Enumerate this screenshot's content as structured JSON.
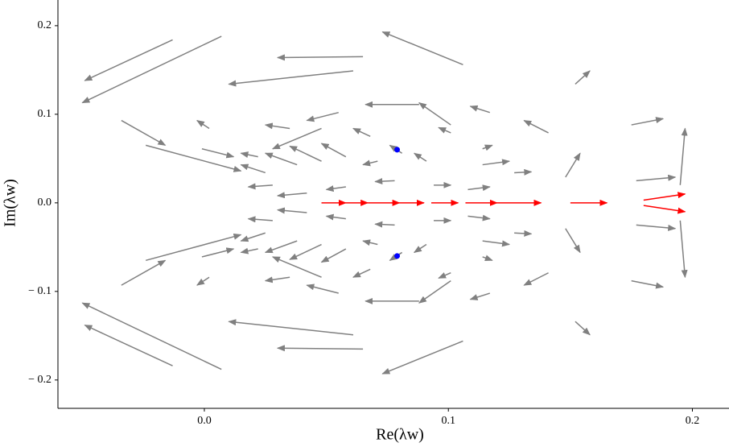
{
  "chart_data": {
    "type": "quiver",
    "xlabel": "Re(λw)",
    "ylabel": "Im(λw)",
    "xlim": [
      -0.06,
      0.215
    ],
    "ylim": [
      -0.232,
      0.229
    ],
    "xticks": [
      {
        "value": 0,
        "label": "0.0"
      },
      0.1,
      0.2
    ],
    "yticks": [
      {
        "value": -0.2,
        "label": "− 0.2"
      },
      {
        "value": -0.1,
        "label": "− 0.1"
      },
      {
        "value": 0,
        "label": "0.0"
      },
      0.1,
      0.2
    ],
    "series": [
      {
        "color": "#808080",
        "segments": [
          [
            0.106,
            0.156,
            0.073,
            0.193
          ],
          [
            0.065,
            0.165,
            0.03,
            0.164
          ],
          [
            0.061,
            0.149,
            0.01,
            0.134
          ],
          [
            0.088,
            0.111,
            0.066,
            0.111
          ],
          [
            0.101,
            0.088,
            0.088,
            0.113
          ],
          [
            0.117,
            0.102,
            0.109,
            0.109
          ],
          [
            0.141,
            0.079,
            0.131,
            0.093
          ],
          [
            0.148,
            0.029,
            0.154,
            0.056
          ],
          [
            0.152,
            0.134,
            0.158,
            0.149
          ],
          [
            0.175,
            0.088,
            0.188,
            0.095
          ],
          [
            0.195,
            0.02,
            0.197,
            0.084
          ],
          [
            0.177,
            0.025,
            0.193,
            0.029
          ],
          [
            0.055,
            0.102,
            0.042,
            0.093
          ],
          [
            0.048,
            0.084,
            0.028,
            0.061
          ],
          [
            0.002,
            0.084,
            -0.003,
            0.093
          ],
          [
            -0.013,
            0.184,
            -0.049,
            0.138
          ],
          [
            0.007,
            0.188,
            -0.05,
            0.113
          ],
          [
            -0.034,
            0.093,
            -0.016,
            0.065
          ],
          [
            -0.024,
            0.065,
            0.015,
            0.036
          ],
          [
            -0.001,
            0.061,
            0.012,
            0.052
          ],
          [
            0.025,
            0.034,
            0.015,
            0.043
          ],
          [
            0.038,
            0.043,
            0.025,
            0.056
          ],
          [
            0.048,
            0.047,
            0.035,
            0.064
          ],
          [
            0.058,
            0.052,
            0.048,
            0.067
          ],
          [
            0.071,
            0.047,
            0.065,
            0.043
          ],
          [
            0.081,
            0.056,
            0.076,
            0.065
          ],
          [
            0.091,
            0.047,
            0.086,
            0.056
          ],
          [
            0.094,
            0.02,
            0.101,
            0.02
          ],
          [
            0.108,
            0.015,
            0.117,
            0.018
          ],
          [
            0.114,
            0.043,
            0.125,
            0.047
          ],
          [
            0.127,
            0.034,
            0.134,
            0.035
          ],
          [
            0.078,
            0.025,
            0.07,
            0.024
          ],
          [
            0.058,
            0.018,
            0.05,
            0.015
          ],
          [
            0.042,
            0.011,
            0.03,
            0.008
          ],
          [
            0.028,
            0.02,
            0.018,
            0.018
          ],
          [
            0.101,
            0.079,
            0.096,
            0.085
          ],
          [
            0.114,
            0.061,
            0.118,
            0.065
          ],
          [
            0.068,
            0.075,
            0.061,
            0.084
          ],
          [
            0.035,
            0.084,
            0.025,
            0.088
          ],
          [
            0.022,
            0.052,
            0.015,
            0.056
          ],
          [
            0.106,
            -0.156,
            0.073,
            -0.193
          ],
          [
            0.065,
            -0.165,
            0.03,
            -0.164
          ],
          [
            0.061,
            -0.149,
            0.01,
            -0.134
          ],
          [
            0.088,
            -0.111,
            0.066,
            -0.111
          ],
          [
            0.101,
            -0.088,
            0.088,
            -0.113
          ],
          [
            0.117,
            -0.102,
            0.109,
            -0.109
          ],
          [
            0.141,
            -0.079,
            0.131,
            -0.093
          ],
          [
            0.148,
            -0.029,
            0.154,
            -0.056
          ],
          [
            0.152,
            -0.134,
            0.158,
            -0.149
          ],
          [
            0.175,
            -0.088,
            0.188,
            -0.095
          ],
          [
            0.195,
            -0.02,
            0.197,
            -0.084
          ],
          [
            0.177,
            -0.025,
            0.193,
            -0.029
          ],
          [
            0.055,
            -0.102,
            0.042,
            -0.093
          ],
          [
            0.048,
            -0.084,
            0.028,
            -0.061
          ],
          [
            0.002,
            -0.084,
            -0.003,
            -0.093
          ],
          [
            -0.013,
            -0.184,
            -0.049,
            -0.138
          ],
          [
            0.007,
            -0.188,
            -0.05,
            -0.113
          ],
          [
            -0.034,
            -0.093,
            -0.016,
            -0.065
          ],
          [
            -0.024,
            -0.065,
            0.015,
            -0.036
          ],
          [
            -0.001,
            -0.061,
            0.012,
            -0.052
          ],
          [
            0.025,
            -0.034,
            0.015,
            -0.043
          ],
          [
            0.038,
            -0.043,
            0.025,
            -0.056
          ],
          [
            0.048,
            -0.047,
            0.035,
            -0.064
          ],
          [
            0.058,
            -0.052,
            0.048,
            -0.067
          ],
          [
            0.071,
            -0.047,
            0.065,
            -0.043
          ],
          [
            0.081,
            -0.056,
            0.076,
            -0.065
          ],
          [
            0.091,
            -0.047,
            0.086,
            -0.056
          ],
          [
            0.094,
            -0.02,
            0.101,
            -0.02
          ],
          [
            0.108,
            -0.015,
            0.117,
            -0.018
          ],
          [
            0.114,
            -0.043,
            0.125,
            -0.047
          ],
          [
            0.127,
            -0.034,
            0.134,
            -0.035
          ],
          [
            0.078,
            -0.025,
            0.07,
            -0.024
          ],
          [
            0.058,
            -0.018,
            0.05,
            -0.015
          ],
          [
            0.042,
            -0.011,
            0.03,
            -0.008
          ],
          [
            0.028,
            -0.02,
            0.018,
            -0.018
          ],
          [
            0.101,
            -0.079,
            0.096,
            -0.085
          ],
          [
            0.114,
            -0.061,
            0.118,
            -0.065
          ],
          [
            0.068,
            -0.075,
            0.061,
            -0.084
          ],
          [
            0.035,
            -0.084,
            0.025,
            -0.088
          ],
          [
            0.022,
            -0.052,
            0.015,
            -0.056
          ]
        ]
      },
      {
        "color": "#ff0000",
        "segments": [
          [
            0.048,
            0,
            0.058,
            0
          ],
          [
            0.058,
            0,
            0.067,
            0
          ],
          [
            0.067,
            0,
            0.08,
            0
          ],
          [
            0.08,
            0,
            0.09,
            0
          ],
          [
            0.093,
            0,
            0.104,
            0
          ],
          [
            0.107,
            0,
            0.12,
            0
          ],
          [
            0.12,
            0,
            0.138,
            0
          ],
          [
            0.15,
            0,
            0.165,
            0
          ],
          [
            0.18,
            0.003,
            0.197,
            0.01
          ],
          [
            0.18,
            -0.003,
            0.197,
            -0.01
          ]
        ]
      }
    ],
    "points": {
      "color": "#0000ff",
      "x": [
        0.079,
        0.079
      ],
      "y": [
        0.06,
        -0.06
      ]
    }
  }
}
